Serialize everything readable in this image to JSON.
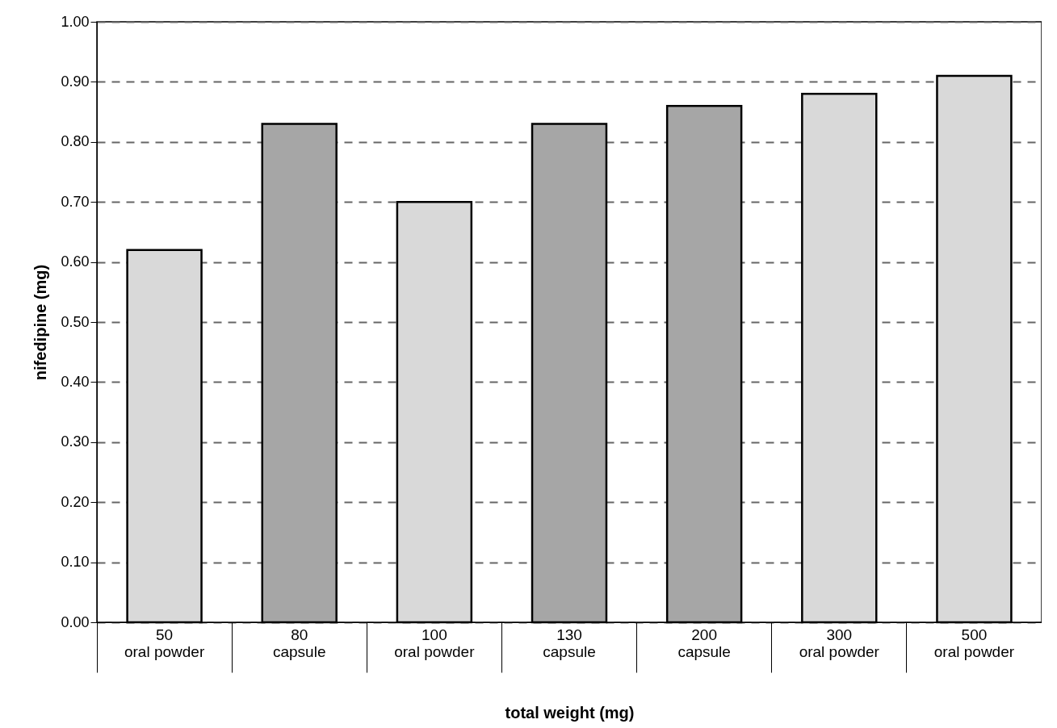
{
  "chart_data": {
    "type": "bar",
    "xlabel": "total weight (mg)",
    "ylabel": "nifedipine (mg)",
    "categories": [
      "50\noral powder",
      "80\ncapsule",
      "100\noral powder",
      "130\ncapsule",
      "200\ncapsule",
      "300\noral powder",
      "500\noral powder"
    ],
    "values": [
      0.62,
      0.83,
      0.7,
      0.83,
      0.86,
      0.88,
      0.91
    ],
    "colors": [
      "#d9d9d9",
      "#a6a6a6",
      "#d9d9d9",
      "#a6a6a6",
      "#a6a6a6",
      "#d9d9d9",
      "#d9d9d9"
    ],
    "ylim": [
      0,
      1
    ],
    "yticks": [
      {
        "value": 0,
        "label": "0.00"
      },
      {
        "value": 0.1,
        "label": "0.10"
      },
      {
        "value": 0.2,
        "label": "0.20"
      },
      {
        "value": 0.3,
        "label": "0.30"
      },
      {
        "value": 0.4,
        "label": "0.40"
      },
      {
        "value": 0.5,
        "label": "0.50"
      },
      {
        "value": 0.6,
        "label": "0.60"
      },
      {
        "value": 0.7,
        "label": "0.70"
      },
      {
        "value": 0.8,
        "label": "0.80"
      },
      {
        "value": 0.9,
        "label": "0.90"
      },
      {
        "value": 1,
        "label": "1.00"
      }
    ],
    "grid": "y"
  }
}
